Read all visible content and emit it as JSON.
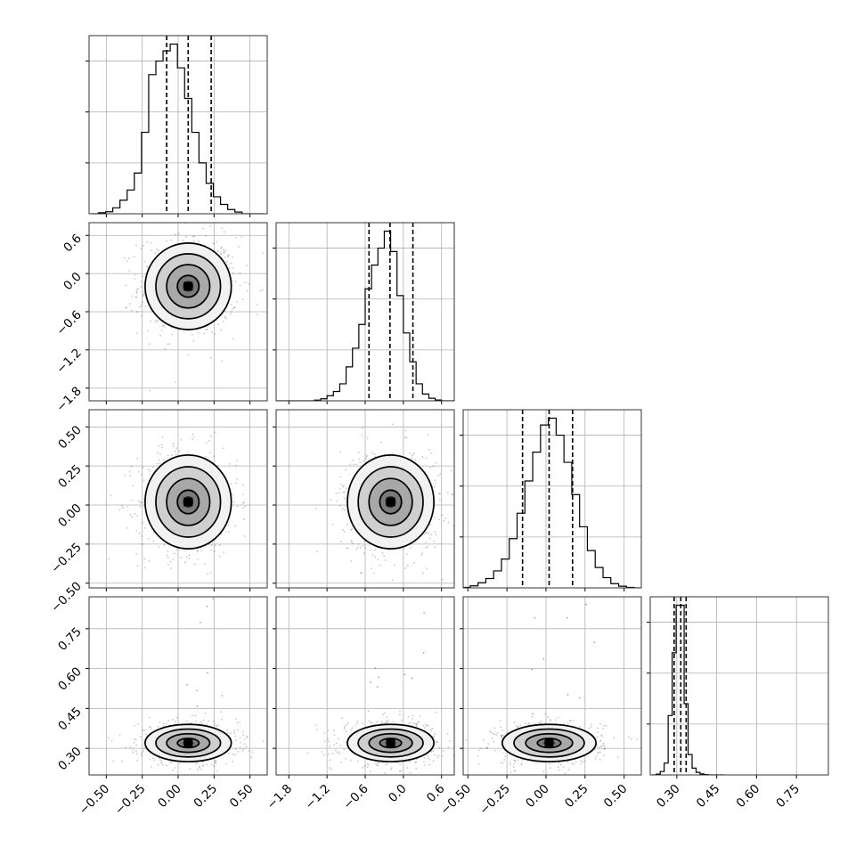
{
  "chart_data": {
    "type": "corner",
    "grid": true,
    "parameters": [
      {
        "range": [
          -0.62,
          0.62
        ],
        "ticks": [
          -0.5,
          -0.25,
          0.0,
          0.25,
          0.5
        ],
        "tick_labels": [
          "−0.50",
          "−0.25",
          "0.00",
          "0.25",
          "0.50"
        ],
        "hist_x": [
          -0.58,
          -0.53,
          -0.48,
          -0.43,
          -0.38,
          -0.33,
          -0.28,
          -0.23,
          -0.18,
          -0.13,
          -0.08,
          -0.03,
          0.02,
          0.07,
          0.12,
          0.17,
          0.22,
          0.27,
          0.32,
          0.37,
          0.42,
          0.47,
          0.52,
          0.57
        ],
        "hist_counts": [
          0.0,
          0.006,
          0.012,
          0.035,
          0.08,
          0.14,
          0.24,
          0.48,
          0.82,
          0.9,
          0.96,
          1.0,
          0.86,
          0.68,
          0.48,
          0.3,
          0.18,
          0.1,
          0.055,
          0.025,
          0.01,
          0.0,
          0.0,
          0.0
        ],
        "quantiles": [
          -0.08,
          0.07,
          0.23
        ]
      },
      {
        "range": [
          -2.0,
          0.8
        ],
        "ticks": [
          -1.8,
          -1.2,
          -0.6,
          0.0,
          0.6
        ],
        "tick_labels": [
          "−1.8",
          "−1.2",
          "−0.6",
          "0.0",
          "0.6"
        ],
        "hist_x": [
          -1.95,
          -1.85,
          -1.75,
          -1.65,
          -1.55,
          -1.45,
          -1.35,
          -1.25,
          -1.15,
          -1.05,
          -0.95,
          -0.85,
          -0.75,
          -0.65,
          -0.55,
          -0.45,
          -0.35,
          -0.25,
          -0.15,
          -0.05,
          0.05,
          0.15,
          0.25,
          0.35,
          0.45,
          0.55,
          0.65,
          0.75
        ],
        "hist_counts": [
          0.0,
          0.0,
          0.0,
          0.0,
          0.0,
          0.0,
          0.004,
          0.012,
          0.03,
          0.055,
          0.1,
          0.2,
          0.31,
          0.45,
          0.66,
          0.8,
          0.9,
          1.0,
          0.88,
          0.62,
          0.4,
          0.23,
          0.1,
          0.04,
          0.015,
          0.005,
          0.0,
          0.0
        ],
        "quantiles": [
          -0.54,
          -0.21,
          0.15
        ]
      },
      {
        "range": [
          -0.53,
          0.61
        ],
        "ticks": [
          -0.5,
          -0.25,
          0.0,
          0.25,
          0.5
        ],
        "tick_labels": [
          "−0.50",
          "−0.25",
          "0.00",
          "0.25",
          "0.50"
        ],
        "hist_x": [
          -0.51,
          -0.46,
          -0.41,
          -0.36,
          -0.31,
          -0.26,
          -0.21,
          -0.16,
          -0.11,
          -0.06,
          -0.01,
          0.04,
          0.09,
          0.14,
          0.19,
          0.24,
          0.29,
          0.34,
          0.39,
          0.44,
          0.49,
          0.54,
          0.59
        ],
        "hist_counts": [
          0.003,
          0.012,
          0.03,
          0.055,
          0.1,
          0.17,
          0.29,
          0.44,
          0.63,
          0.8,
          0.96,
          1.0,
          0.9,
          0.74,
          0.55,
          0.36,
          0.22,
          0.12,
          0.06,
          0.025,
          0.01,
          0.003,
          0.0
        ],
        "quantiles": [
          -0.15,
          0.02,
          0.17
        ]
      },
      {
        "range": [
          0.2,
          0.87
        ],
        "ticks": [
          0.3,
          0.45,
          0.6,
          0.75
        ],
        "tick_labels": [
          "0.30",
          "0.45",
          "0.60",
          "0.75"
        ],
        "hist_x": [
          0.215,
          0.23,
          0.245,
          0.26,
          0.275,
          0.29,
          0.305,
          0.32,
          0.335,
          0.35,
          0.365,
          0.38,
          0.395,
          0.41,
          0.425,
          0.44,
          0.455,
          0.47
        ],
        "hist_counts": [
          0.0,
          0.005,
          0.02,
          0.07,
          0.35,
          0.72,
          1.0,
          1.0,
          0.42,
          0.12,
          0.04,
          0.015,
          0.006,
          0.002,
          0.0,
          0.0,
          0.0,
          0.0
        ],
        "quantiles": [
          0.29,
          0.315,
          0.335
        ]
      }
    ],
    "correlations": [
      [
        1.0,
        0.0,
        0.0,
        0.0
      ],
      [
        0.0,
        1.0,
        0.0,
        0.0
      ],
      [
        0.0,
        0.0,
        1.0,
        0.0
      ],
      [
        0.0,
        0.0,
        0.0,
        1.0
      ]
    ],
    "means": [
      0.07,
      -0.2,
      0.02,
      0.32
    ],
    "sigmas": [
      0.15,
      0.34,
      0.15,
      0.035
    ]
  }
}
